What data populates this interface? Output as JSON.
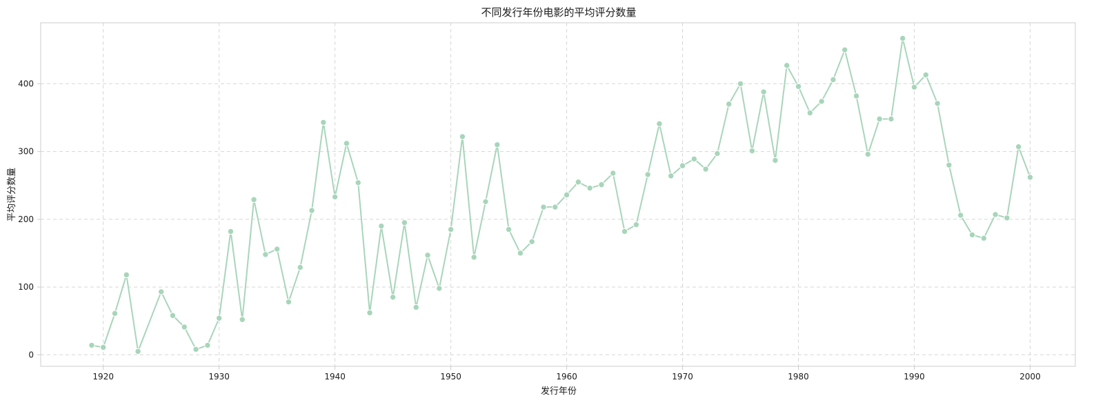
{
  "chart_data": {
    "type": "line",
    "title": "不同发行年份电影的平均评分数量",
    "xlabel": "发行年份",
    "ylabel": "平均评分数量",
    "xlim": [
      1914.6,
      2003.9
    ],
    "ylim": [
      -17,
      490
    ],
    "xticks": [
      1920,
      1930,
      1940,
      1950,
      1960,
      1970,
      1980,
      1990,
      2000
    ],
    "yticks": [
      0,
      100,
      200,
      300,
      400
    ],
    "grid": true,
    "legend": "none",
    "color": "#a8d5ba",
    "series": [
      {
        "x": [
          1919,
          1920,
          1921,
          1922,
          1923,
          1925,
          1926,
          1927,
          1928,
          1929,
          1930,
          1931,
          1932,
          1933,
          1934,
          1935,
          1936,
          1937,
          1938,
          1939,
          1940,
          1941,
          1942,
          1943,
          1944,
          1945,
          1946,
          1947,
          1948,
          1949,
          1950,
          1951,
          1952,
          1953,
          1954,
          1955,
          1956,
          1957,
          1958,
          1959,
          1960,
          1961,
          1962,
          1963,
          1964,
          1965,
          1966,
          1967,
          1968,
          1969,
          1970,
          1971,
          1972,
          1973,
          1974,
          1975,
          1976,
          1977,
          1978,
          1979,
          1980,
          1981,
          1982,
          1983,
          1984,
          1985,
          1986,
          1987,
          1988,
          1989,
          1990,
          1991,
          1992,
          1993,
          1994,
          1995,
          1996,
          1997,
          1998,
          1999,
          2000
        ],
        "values": [
          14,
          11,
          61,
          118,
          5,
          93,
          58,
          41,
          8,
          14,
          54,
          182,
          52,
          229,
          148,
          156,
          78,
          129,
          213,
          343,
          233,
          312,
          254,
          62,
          190,
          85,
          195,
          70,
          147,
          98,
          185,
          322,
          144,
          226,
          310,
          185,
          150,
          167,
          218,
          218,
          236,
          255,
          246,
          251,
          268,
          182,
          192,
          266,
          341,
          264,
          279,
          289,
          274,
          297,
          370,
          400,
          301,
          388,
          287,
          427,
          396,
          357,
          374,
          406,
          450,
          382,
          296,
          348,
          348,
          467,
          395,
          413,
          371,
          280,
          206,
          177,
          172,
          207,
          202,
          307,
          262
        ]
      }
    ]
  }
}
